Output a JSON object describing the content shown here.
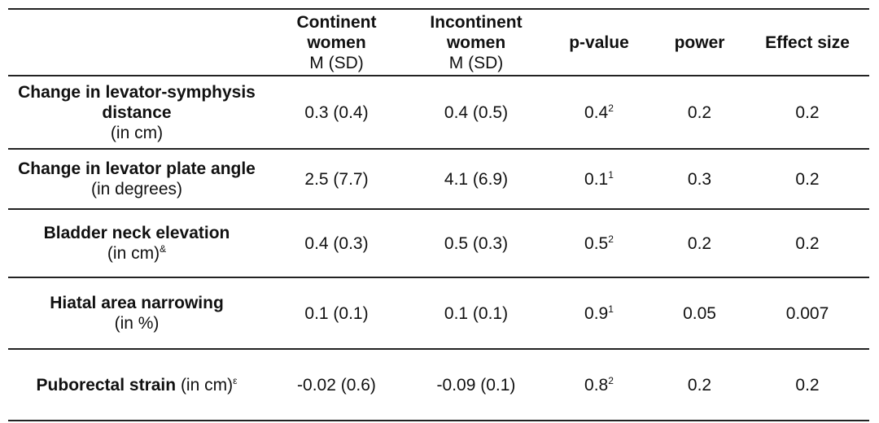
{
  "table": {
    "headers": [
      {
        "label": "",
        "sub": ""
      },
      {
        "label": "Continent women",
        "sub": "M (SD)"
      },
      {
        "label": "Incontinent women",
        "sub": "M (SD)"
      },
      {
        "label": "p-value",
        "sub": ""
      },
      {
        "label": "power",
        "sub": ""
      },
      {
        "label": "Effect size",
        "sub": ""
      }
    ],
    "rows": [
      {
        "label_bold": "Change in levator-symphysis distance",
        "label_normal": "(in cm)",
        "label_sup": "",
        "continent": "0.3 (0.4)",
        "incontinent": "0.4 (0.5)",
        "p_value": "0.4",
        "p_sup": "2",
        "power": "0.2",
        "effect_size": "0.2"
      },
      {
        "label_bold": "Change in levator plate angle",
        "label_normal": "(in degrees)",
        "label_sup": "",
        "continent": "2.5 (7.7)",
        "incontinent": "4.1 (6.9)",
        "p_value": "0.1",
        "p_sup": "1",
        "power": "0.3",
        "effect_size": "0.2"
      },
      {
        "label_bold": "Bladder neck elevation",
        "label_normal": "(in cm)",
        "label_sup": "&",
        "continent": "0.4 (0.3)",
        "incontinent": "0.5 (0.3)",
        "p_value": "0.5",
        "p_sup": "2",
        "power": "0.2",
        "effect_size": "0.2"
      },
      {
        "label_bold": "Hiatal area narrowing",
        "label_normal": "(in %)",
        "label_sup": "",
        "continent": "0.1 (0.1)",
        "incontinent": "0.1 (0.1)",
        "p_value": "0.9",
        "p_sup": "1",
        "power": "0.05",
        "effect_size": "0.007"
      },
      {
        "label_bold": "Puborectal strain",
        "label_normal": "(in cm)",
        "label_sup": "ε",
        "continent": "-0.02 (0.6)",
        "incontinent": "-0.09 (0.1)",
        "p_value": "0.8",
        "p_sup": "2",
        "power": "0.2",
        "effect_size": "0.2"
      }
    ]
  }
}
